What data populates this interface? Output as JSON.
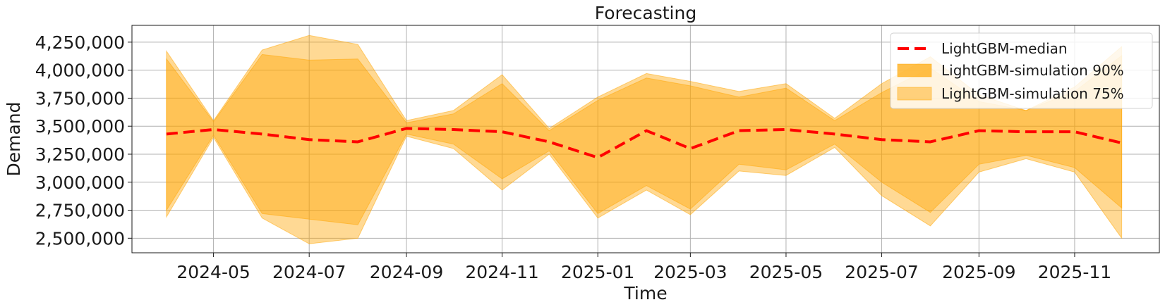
{
  "chart_data": {
    "type": "area",
    "title": "Forecasting",
    "xlabel": "Time",
    "ylabel": "Demand",
    "grid": true,
    "legend_position": "top-right",
    "x": [
      "2024-04",
      "2024-05",
      "2024-06",
      "2024-07",
      "2024-08",
      "2024-09",
      "2024-10",
      "2024-11",
      "2024-12",
      "2025-01",
      "2025-02",
      "2025-03",
      "2025-04",
      "2025-05",
      "2025-06",
      "2025-07",
      "2025-08",
      "2025-09",
      "2025-10",
      "2025-11",
      "2025-12"
    ],
    "xlim": [
      "2024-03-10",
      "2025-12-25"
    ],
    "x_ticks": [
      "2024-05",
      "2024-07",
      "2024-09",
      "2024-11",
      "2025-01",
      "2025-03",
      "2025-05",
      "2025-07",
      "2025-09",
      "2025-11"
    ],
    "ylim": [
      2370000,
      4400000
    ],
    "y_ticks": [
      {
        "value": 2500000,
        "label": "2,500,000"
      },
      {
        "value": 2750000,
        "label": "2,750,000"
      },
      {
        "value": 3000000,
        "label": "3,000,000"
      },
      {
        "value": 3250000,
        "label": "3,250,000"
      },
      {
        "value": 3500000,
        "label": "3,500,000"
      },
      {
        "value": 3750000,
        "label": "3,750,000"
      },
      {
        "value": 4000000,
        "label": "4,000,000"
      },
      {
        "value": 4250000,
        "label": "4,250,000"
      }
    ],
    "series": [
      {
        "name": "LightGBM-median",
        "kind": "line",
        "style": "dashed",
        "color": "#ff0000",
        "values": [
          3430000,
          3470000,
          3430000,
          3380000,
          3360000,
          3480000,
          3470000,
          3450000,
          3360000,
          3220000,
          3460000,
          3300000,
          3460000,
          3470000,
          3430000,
          3380000,
          3360000,
          3460000,
          3450000,
          3450000,
          3350000
        ]
      },
      {
        "name": "LightGBM-simulation 90%",
        "kind": "band",
        "color": "#ffa500",
        "lower": [
          2690000,
          3400000,
          2680000,
          2450000,
          2500000,
          3410000,
          3300000,
          2930000,
          3250000,
          2680000,
          2930000,
          2710000,
          3100000,
          3060000,
          3310000,
          2880000,
          2610000,
          3090000,
          3210000,
          3090000,
          2500000
        ],
        "upper": [
          4170000,
          3550000,
          4180000,
          4310000,
          4230000,
          3550000,
          3640000,
          3960000,
          3480000,
          3760000,
          3970000,
          3900000,
          3810000,
          3880000,
          3570000,
          3880000,
          4120000,
          3780000,
          3640000,
          3850000,
          4210000
        ]
      },
      {
        "name": "LightGBM-simulation 75%",
        "kind": "band",
        "color": "#ffa500",
        "lower": [
          2750000,
          3420000,
          2720000,
          2670000,
          2620000,
          3430000,
          3340000,
          3030000,
          3280000,
          2720000,
          2970000,
          2760000,
          3160000,
          3110000,
          3340000,
          3000000,
          2730000,
          3160000,
          3240000,
          3130000,
          2770000
        ],
        "upper": [
          4100000,
          3540000,
          4140000,
          4090000,
          4100000,
          3530000,
          3610000,
          3880000,
          3460000,
          3730000,
          3930000,
          3860000,
          3760000,
          3840000,
          3550000,
          3800000,
          4020000,
          3720000,
          3640000,
          3810000,
          4130000
        ]
      }
    ]
  }
}
